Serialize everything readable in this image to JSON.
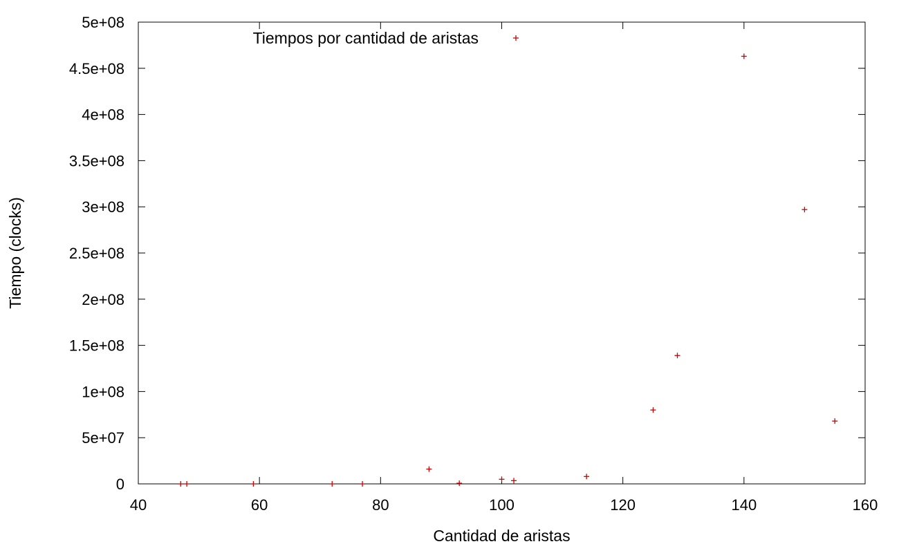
{
  "chart_data": {
    "type": "scatter",
    "title": "",
    "xlabel": "Cantidad de aristas",
    "ylabel": "Tiempo (clocks)",
    "xlim": [
      40,
      160
    ],
    "ylim": [
      0,
      500000000
    ],
    "grid": false,
    "legend_position": "top",
    "x_ticks": [
      {
        "value": 40,
        "label": "40"
      },
      {
        "value": 60,
        "label": "60"
      },
      {
        "value": 80,
        "label": "80"
      },
      {
        "value": 100,
        "label": "100"
      },
      {
        "value": 120,
        "label": "120"
      },
      {
        "value": 140,
        "label": "140"
      },
      {
        "value": 160,
        "label": "160"
      }
    ],
    "y_ticks": [
      {
        "value": 0,
        "label": "0"
      },
      {
        "value": 50000000,
        "label": "5e+07"
      },
      {
        "value": 100000000,
        "label": "1e+08"
      },
      {
        "value": 150000000,
        "label": "1.5e+08"
      },
      {
        "value": 200000000,
        "label": "2e+08"
      },
      {
        "value": 250000000,
        "label": "2.5e+08"
      },
      {
        "value": 300000000,
        "label": "3e+08"
      },
      {
        "value": 350000000,
        "label": "3.5e+08"
      },
      {
        "value": 400000000,
        "label": "4e+08"
      },
      {
        "value": 450000000,
        "label": "4.5e+08"
      },
      {
        "value": 500000000,
        "label": "5e+08"
      }
    ],
    "series": [
      {
        "name": "Tiempos por cantidad de aristas",
        "color": "#cc0000",
        "marker": "plus",
        "points": [
          {
            "x": 47,
            "y": 0
          },
          {
            "x": 48,
            "y": 0
          },
          {
            "x": 59,
            "y": 0
          },
          {
            "x": 72,
            "y": 0
          },
          {
            "x": 77,
            "y": 0
          },
          {
            "x": 88,
            "y": 16000000
          },
          {
            "x": 93,
            "y": 700000
          },
          {
            "x": 100,
            "y": 5000000
          },
          {
            "x": 102,
            "y": 3500000
          },
          {
            "x": 114,
            "y": 8000000
          },
          {
            "x": 125,
            "y": 80000000
          },
          {
            "x": 129,
            "y": 139000000
          },
          {
            "x": 140,
            "y": 463000000
          },
          {
            "x": 150,
            "y": 297000000
          },
          {
            "x": 155,
            "y": 68000000
          }
        ]
      }
    ]
  }
}
